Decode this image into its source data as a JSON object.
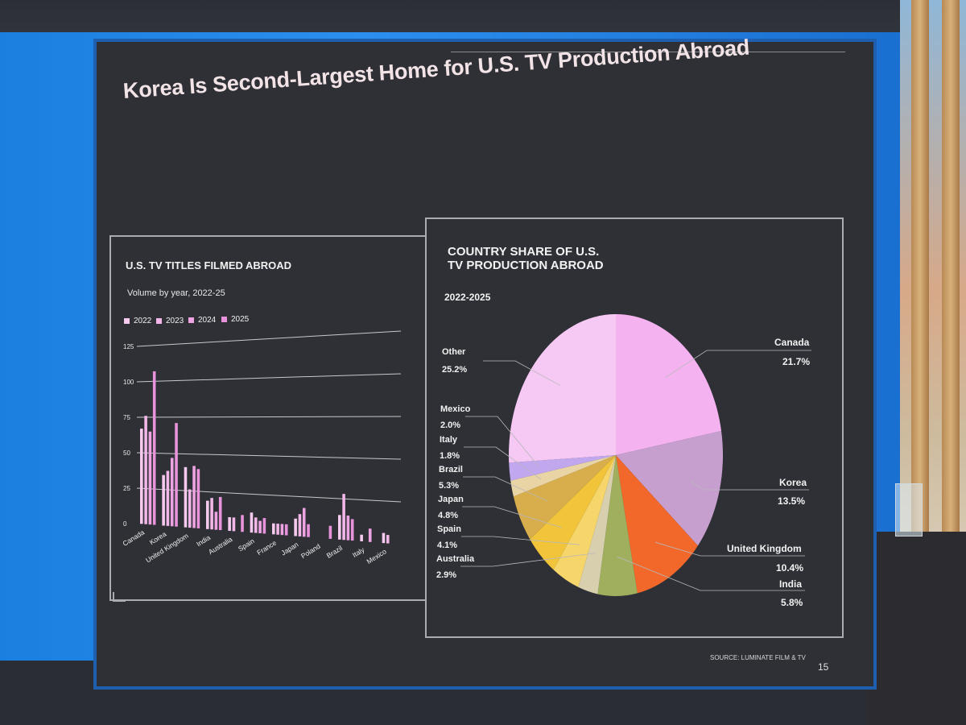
{
  "slide": {
    "title": "Korea Is Second-Largest Home for U.S. TV Production Abroad",
    "source": "SOURCE: LUMINATE FILM & TV",
    "page_number": "15"
  },
  "colors": {
    "slide_bg": "#2e3035",
    "frame_blue": "#1b7fe0",
    "bar_2022": "#f6c9ee",
    "bar_2023": "#f2b7e8",
    "bar_2024": "#eea4e2",
    "bar_2025": "#e992dc"
  },
  "chart_data": [
    {
      "type": "bar",
      "title": "U.S. TV TITLES FILMED ABROAD",
      "subtitle": "Volume by year, 2022-25",
      "legend_position": "top-left",
      "grid": true,
      "ylim": [
        0,
        125
      ],
      "yticks": [
        "0",
        "25",
        "50",
        "75",
        "100",
        "125"
      ],
      "categories": [
        "Canada",
        "Korea",
        "United Kingdom",
        "India",
        "Australia",
        "Spain",
        "France",
        "Japan",
        "Poland",
        "Brazil",
        "Italy",
        "Mexico"
      ],
      "series": [
        {
          "name": "2022",
          "values": [
            67,
            35,
            41,
            19,
            9,
            13,
            7,
            11,
            0,
            15,
            4,
            6
          ]
        },
        {
          "name": "2023",
          "values": [
            76,
            38,
            26,
            21,
            9,
            10,
            7,
            14,
            0,
            28,
            0,
            5
          ]
        },
        {
          "name": "2024",
          "values": [
            65,
            47,
            42,
            12,
            0,
            8,
            7,
            18,
            0,
            15,
            8,
            0
          ]
        },
        {
          "name": "2025",
          "values": [
            107,
            71,
            40,
            22,
            11,
            10,
            7,
            8,
            8,
            13,
            0,
            0
          ]
        }
      ]
    },
    {
      "type": "pie",
      "title_line1": "COUNTRY SHARE OF U.S.",
      "title_line2": "TV PRODUCTION ABROAD",
      "subtitle": "2022-2025",
      "slices": [
        {
          "name": "Canada",
          "value": 21.7,
          "label": "21.7%",
          "color": "#f4b3f0"
        },
        {
          "name": "Korea",
          "value": 13.5,
          "label": "13.5%",
          "color": "#c79fcf"
        },
        {
          "name": "United Kingdom",
          "value": 10.4,
          "label": "10.4%",
          "color": "#f2682a"
        },
        {
          "name": "India",
          "value": 5.8,
          "label": "5.8%",
          "color": "#9faf5e"
        },
        {
          "name": "Australia",
          "value": 2.9,
          "label": "2.9%",
          "color": "#d8cfae"
        },
        {
          "name": "Spain",
          "value": 4.1,
          "label": "4.1%",
          "color": "#f6d56a"
        },
        {
          "name": "Japan",
          "value": 4.8,
          "label": "4.8%",
          "color": "#f1c43a"
        },
        {
          "name": "Brazil",
          "value": 5.3,
          "label": "5.3%",
          "color": "#d8ae4c"
        },
        {
          "name": "Italy",
          "value": 1.8,
          "label": "1.8%",
          "color": "#e9d4a5"
        },
        {
          "name": "Mexico",
          "value": 2.0,
          "label": "2.0%",
          "color": "#c1a7ee"
        },
        {
          "name": "Other",
          "value": 25.2,
          "label": "25.2%",
          "color": "#f6c8f4"
        }
      ]
    }
  ]
}
